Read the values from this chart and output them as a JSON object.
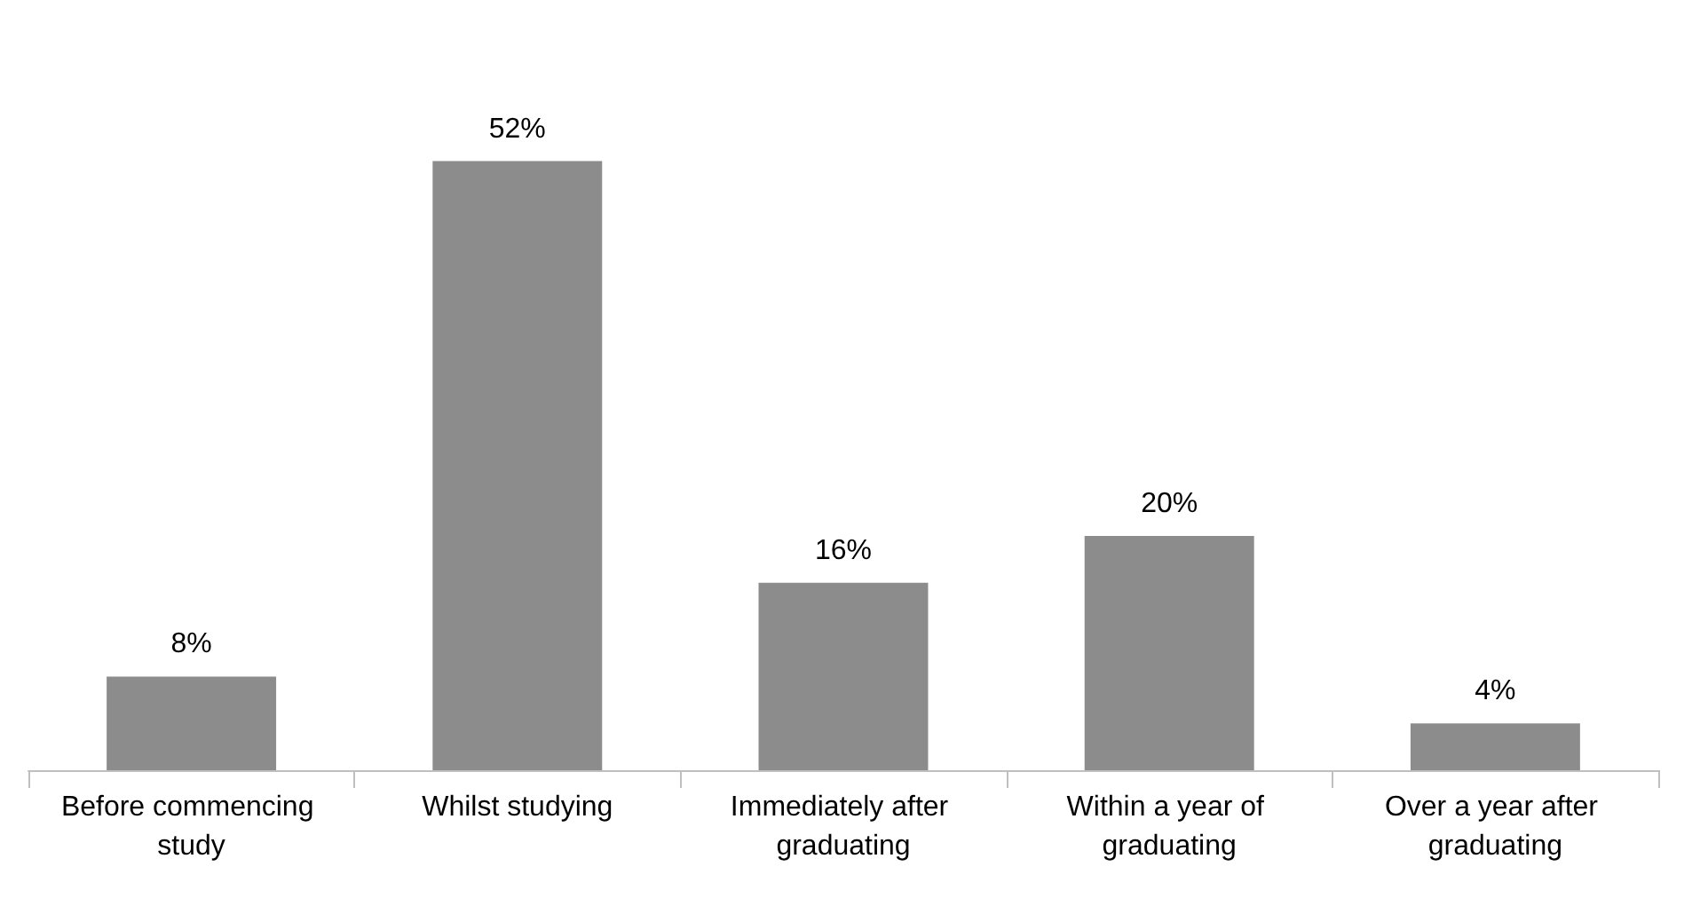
{
  "chart_data": {
    "type": "bar",
    "categories": [
      "Before commencing study",
      "Whilst studying",
      "Immediately after graduating",
      "Within a year of graduating",
      "Over a year after graduating"
    ],
    "values": [
      8,
      52,
      16,
      20,
      4
    ],
    "value_labels": [
      "8%",
      "52%",
      "16%",
      "20%",
      "4%"
    ],
    "color": "#8c8c8c"
  }
}
